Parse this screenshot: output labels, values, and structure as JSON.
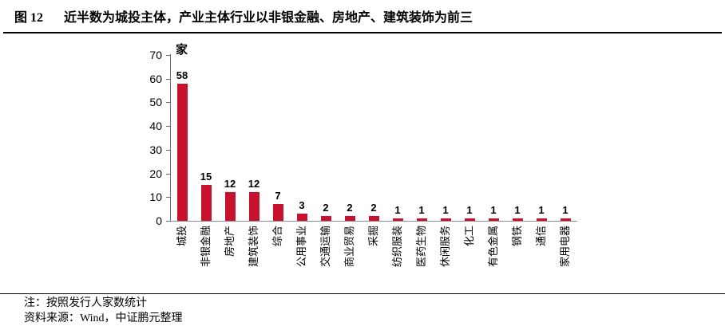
{
  "figure": {
    "label": "图 12",
    "title": "近半数为城投主体，产业主体行业以非银金融、房地产、建筑装饰为前三"
  },
  "chart_data": {
    "type": "bar",
    "title": "近半数为城投主体，产业主体行业以非银金融、房地产、建筑装饰为前三",
    "unit": "家",
    "categories": [
      "城投",
      "非银金融",
      "房地产",
      "建筑装饰",
      "综合",
      "公用事业",
      "交通运输",
      "商业贸易",
      "采掘",
      "纺织服装",
      "医药生物",
      "休闲服务",
      "化工",
      "有色金属",
      "钢铁",
      "通信",
      "家用电器"
    ],
    "values": [
      58,
      15,
      12,
      12,
      7,
      3,
      2,
      2,
      2,
      1,
      1,
      1,
      1,
      1,
      1,
      1,
      1
    ],
    "yticks": [
      0,
      10,
      20,
      30,
      40,
      50,
      60,
      70
    ],
    "ylim": [
      0,
      70
    ],
    "xlabel": "",
    "ylabel": "家",
    "grid": false,
    "legend": "none",
    "category_label_rotation": -90,
    "bar_color": "#C8112C",
    "axis_color": "#6b6b6b",
    "baseline_color": "#8c8c8c",
    "text_color": "#000000"
  },
  "notes": {
    "note": "注：按照发行人家数统计",
    "source": "资料来源：Wind，中证鹏元整理"
  }
}
